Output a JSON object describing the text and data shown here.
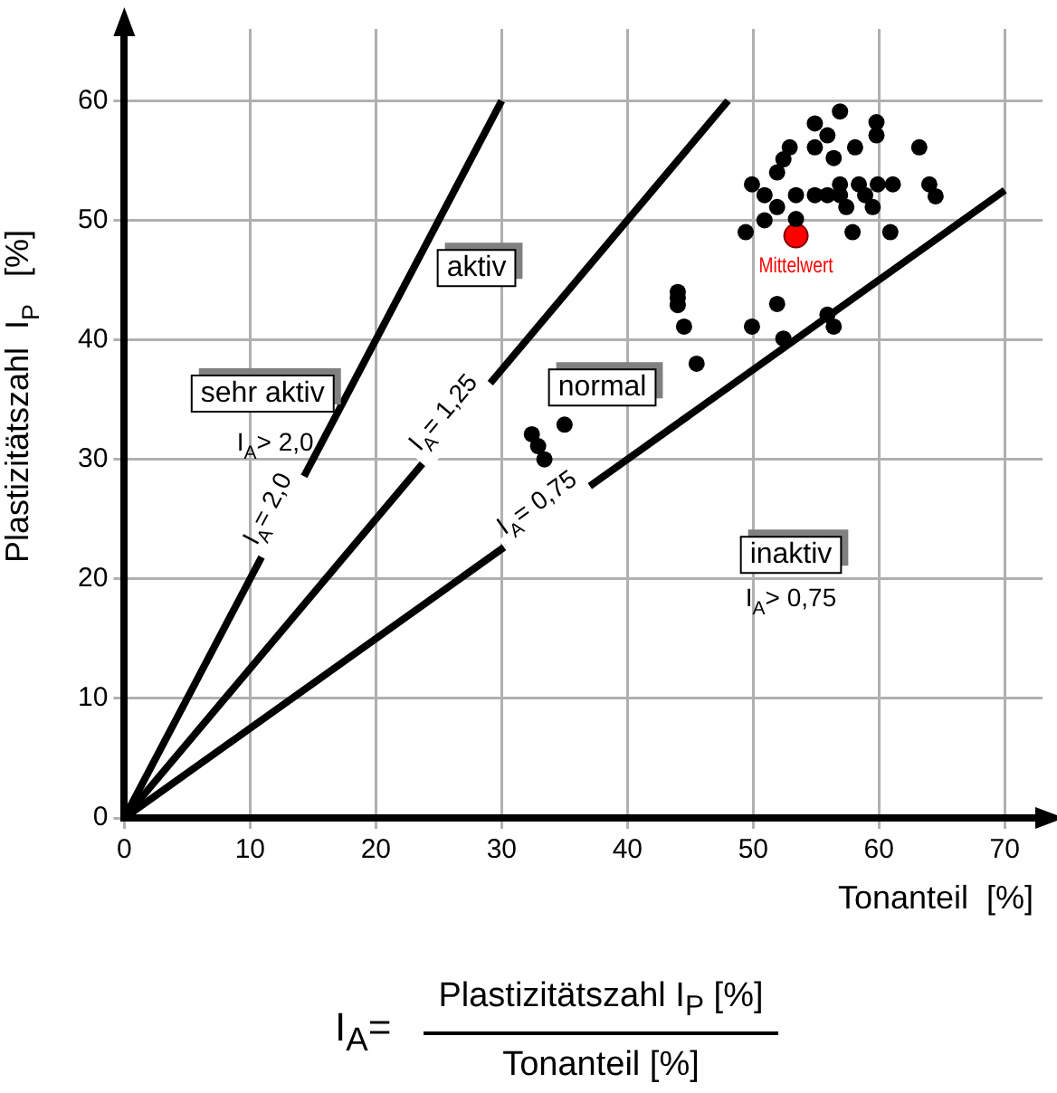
{
  "chart_data": {
    "type": "scatter",
    "xlabel": "Tonanteil  [%]",
    "ylabel": "Plastizitätszahl  I$_{P}$   [%]",
    "xlim": [
      0,
      73
    ],
    "ylim": [
      0,
      66
    ],
    "xticks": [
      0,
      10,
      20,
      30,
      40,
      50,
      60,
      70
    ],
    "yticks": [
      0,
      10,
      20,
      30,
      40,
      50,
      60
    ],
    "grid": true,
    "legend": false,
    "line_style": "solid",
    "series": [
      {
        "marker": "circle",
        "color": "#000000",
        "x": [
          56.9,
          54.9,
          59.8,
          59.8,
          55.9,
          52.9,
          54.9,
          58.1,
          63.2,
          52.4,
          56.4,
          51.9,
          49.9,
          50.9,
          53.4,
          54.9,
          55.9,
          56.9,
          56.9,
          58.4,
          58.9,
          59.9,
          61.1,
          64.0,
          64.5,
          57.4,
          59.5,
          51.9,
          50.9,
          53.4,
          49.4,
          57.9,
          60.9,
          44.0,
          44.0,
          44.0,
          51.9,
          44.5,
          49.9,
          52.4,
          55.9,
          56.4,
          45.5,
          35.0,
          32.4,
          32.9,
          33.4
        ],
        "values": [
          59.1,
          58.1,
          58.2,
          57.1,
          57.1,
          56.1,
          56.1,
          56.1,
          56.1,
          55.1,
          55.2,
          54.0,
          53.0,
          52.1,
          52.1,
          52.1,
          52.1,
          53.0,
          52.1,
          53.0,
          52.1,
          53.0,
          53.0,
          53.0,
          52.0,
          51.1,
          51.1,
          51.1,
          50.0,
          50.1,
          49.0,
          49.0,
          49.0,
          44.0,
          43.5,
          42.9,
          43.0,
          41.1,
          41.1,
          40.1,
          42.1,
          41.1,
          38.0,
          32.9,
          32.1,
          31.1,
          30.0
        ]
      },
      {
        "marker": "circle",
        "color": "#ff0000",
        "x": [
          53.4
        ],
        "values": [
          48.7
        ]
      },
      {
        "type": "line",
        "name": "I$_{A}$= 2,0",
        "marker": "none",
        "color": "#000000",
        "x": [
          0,
          30
        ],
        "values": [
          0,
          60
        ]
      },
      {
        "type": "line",
        "name": "I$_{A}$= 1,25",
        "marker": "none",
        "color": "#000000",
        "x": [
          0,
          48
        ],
        "values": [
          0,
          60
        ]
      },
      {
        "type": "line",
        "name": "I$_{A}$= 0,75",
        "marker": "none",
        "color": "#000000",
        "x": [
          0,
          70
        ],
        "values": [
          0,
          52.5
        ]
      }
    ],
    "annotations": [
      "sehr aktiv",
      "I$_{A}$> 2,0",
      "aktiv",
      "normal",
      "inaktiv",
      "I$_{A}$> 0,75",
      {
        "text": "Mittelwert",
        "x": 53.4,
        "y": 48.7
      },
      "I$_{A}$=",
      "Plastizitätszahl I$_{P}$  [%]",
      "Tonanteil    [%]"
    ]
  }
}
